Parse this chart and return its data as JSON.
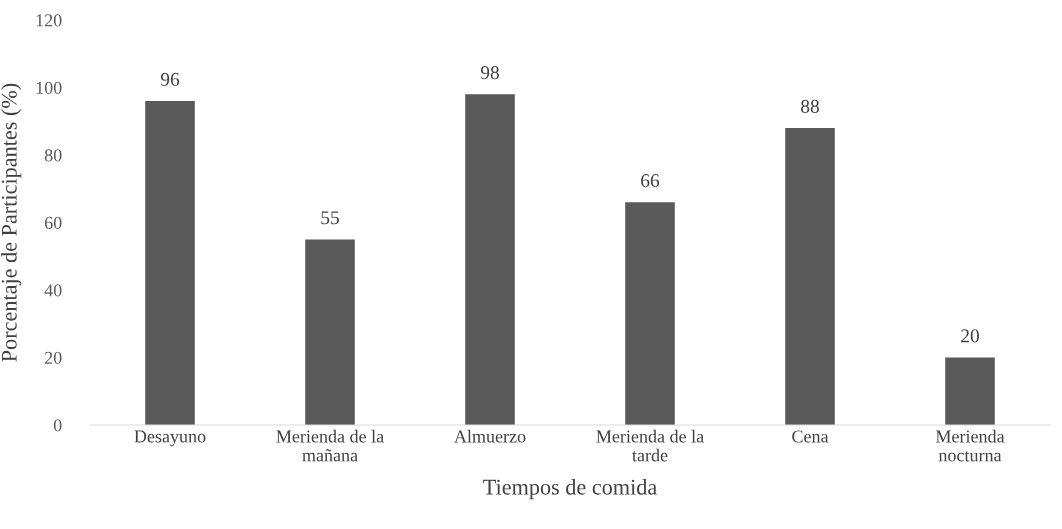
{
  "chart_data": {
    "type": "bar",
    "categories": [
      "Desayuno",
      "Merienda de la\nmañana",
      "Almuerzo",
      "Merienda de la\ntarde",
      "Cena",
      "Merienda\nnocturna"
    ],
    "values": [
      96,
      55,
      98,
      66,
      88,
      20
    ],
    "color": "#595959",
    "xlabel": "Tiempos de comida",
    "ylabel": "Porcentaje de Participantes (%)",
    "ylim": [
      0,
      120
    ],
    "yticks": [
      0,
      20,
      40,
      60,
      80,
      100,
      120
    ],
    "data_labels": true,
    "grid": false,
    "legend": false
  }
}
